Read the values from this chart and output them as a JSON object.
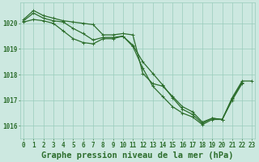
{
  "title": "Graphe pression niveau de la mer (hPa)",
  "bg_color": "#cce8e0",
  "grid_color": "#99ccbb",
  "line_color": "#2d6e2d",
  "x_labels": [
    "0",
    "1",
    "2",
    "3",
    "4",
    "5",
    "6",
    "7",
    "8",
    "9",
    "10",
    "11",
    "12",
    "13",
    "14",
    "15",
    "16",
    "17",
    "18",
    "19",
    "20",
    "21",
    "22",
    "23"
  ],
  "ylim": [
    1015.5,
    1020.8
  ],
  "yticks": [
    1016,
    1017,
    1018,
    1019,
    1020
  ],
  "series1": [
    1020.15,
    1020.5,
    1020.3,
    1020.2,
    1020.1,
    1020.05,
    1020.0,
    1019.95,
    1019.55,
    1019.55,
    1019.6,
    1019.55,
    1018.05,
    1017.65,
    1017.55,
    1017.15,
    1016.75,
    1016.55,
    1016.15,
    1016.3,
    1016.25,
    1017.1,
    1017.75,
    1017.75
  ],
  "series2": [
    1020.1,
    1020.4,
    1020.2,
    1020.1,
    1020.05,
    1019.8,
    1019.6,
    1019.35,
    1019.45,
    1019.45,
    1019.5,
    1019.15,
    1018.5,
    1018.05,
    1017.6,
    1017.1,
    1016.65,
    1016.45,
    1016.1,
    1016.3,
    1016.25,
    1017.05,
    1017.7,
    null
  ],
  "series3": [
    1020.05,
    1020.15,
    1020.1,
    1020.0,
    1019.7,
    1019.4,
    1019.25,
    1019.2,
    1019.4,
    1019.4,
    1019.5,
    1019.1,
    1018.25,
    1017.55,
    1017.15,
    1016.75,
    1016.5,
    1016.35,
    1016.05,
    1016.25,
    1016.25,
    1017.0,
    1017.65,
    null
  ],
  "marker_style": "+",
  "marker_size": 3,
  "linewidth": 0.9,
  "title_fontsize": 7.5,
  "tick_fontsize": 5.5
}
